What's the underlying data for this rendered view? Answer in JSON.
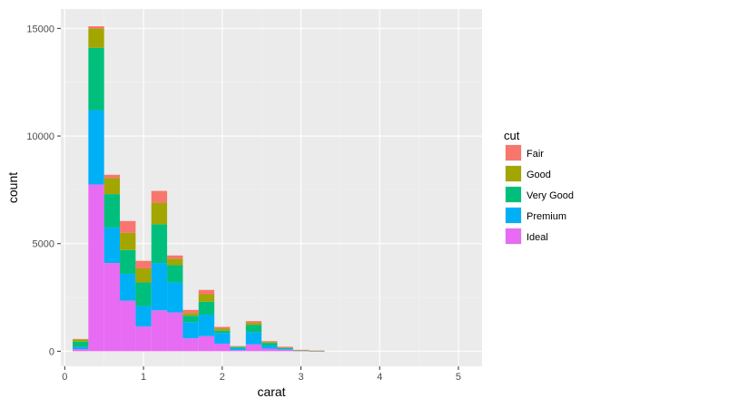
{
  "chart_data": {
    "type": "bar",
    "stacked": true,
    "xlabel": "carat",
    "ylabel": "count",
    "xlim": [
      -0.05,
      5.3
    ],
    "ylim": [
      -700,
      15900
    ],
    "x_ticks": [
      0,
      1,
      2,
      3,
      4,
      5
    ],
    "y_ticks": [
      0,
      5000,
      10000,
      15000
    ],
    "x_tick_labels": [
      "0",
      "1",
      "2",
      "3",
      "4",
      "5"
    ],
    "y_tick_labels": [
      "0",
      "5000",
      "10000",
      "15000"
    ],
    "binwidth": 0.2,
    "bin_centers": [
      0.2,
      0.4,
      0.6,
      0.8,
      1.0,
      1.2,
      1.4,
      1.6,
      1.8,
      2.0,
      2.2,
      2.4,
      2.6,
      2.8,
      3.0,
      3.2,
      3.4,
      3.6,
      3.8,
      4.0,
      4.2,
      4.4,
      4.6,
      4.8,
      5.0
    ],
    "legend": {
      "title": "cut",
      "placement": "right"
    },
    "grid": true,
    "series": [
      {
        "name": "Ideal",
        "color": "#E76BF3",
        "values": [
          100,
          7750,
          4100,
          2350,
          1150,
          1900,
          1800,
          600,
          700,
          350,
          50,
          320,
          120,
          70,
          20,
          0,
          0,
          0,
          0,
          0,
          0,
          0,
          0,
          0,
          0
        ]
      },
      {
        "name": "Premium",
        "color": "#00B0F6",
        "values": [
          100,
          3450,
          1650,
          1250,
          950,
          2200,
          1400,
          750,
          1000,
          500,
          100,
          550,
          150,
          50,
          10,
          5,
          0,
          0,
          0,
          0,
          0,
          0,
          0,
          0,
          0
        ]
      },
      {
        "name": "Very Good",
        "color": "#00BF7D",
        "values": [
          250,
          2900,
          1550,
          1100,
          1100,
          1800,
          800,
          300,
          600,
          100,
          50,
          350,
          120,
          40,
          10,
          10,
          0,
          0,
          0,
          0,
          0,
          0,
          0,
          0,
          0
        ]
      },
      {
        "name": "Good",
        "color": "#A3A500",
        "values": [
          100,
          900,
          750,
          800,
          650,
          1000,
          300,
          120,
          350,
          100,
          20,
          100,
          40,
          10,
          5,
          5,
          0,
          0,
          0,
          0,
          0,
          0,
          0,
          0,
          0
        ]
      },
      {
        "name": "Fair",
        "color": "#F8766D",
        "values": [
          20,
          100,
          150,
          550,
          350,
          550,
          150,
          150,
          200,
          80,
          20,
          80,
          40,
          40,
          20,
          10,
          0,
          0,
          0,
          0,
          0,
          0,
          0,
          0,
          0
        ]
      }
    ],
    "legend_order": [
      "Fair",
      "Good",
      "Very Good",
      "Premium",
      "Ideal"
    ]
  },
  "colors": {
    "panel_background": "#EBEBEB",
    "grid_major": "#FFFFFF",
    "grid_minor": "#F2F2F2"
  }
}
